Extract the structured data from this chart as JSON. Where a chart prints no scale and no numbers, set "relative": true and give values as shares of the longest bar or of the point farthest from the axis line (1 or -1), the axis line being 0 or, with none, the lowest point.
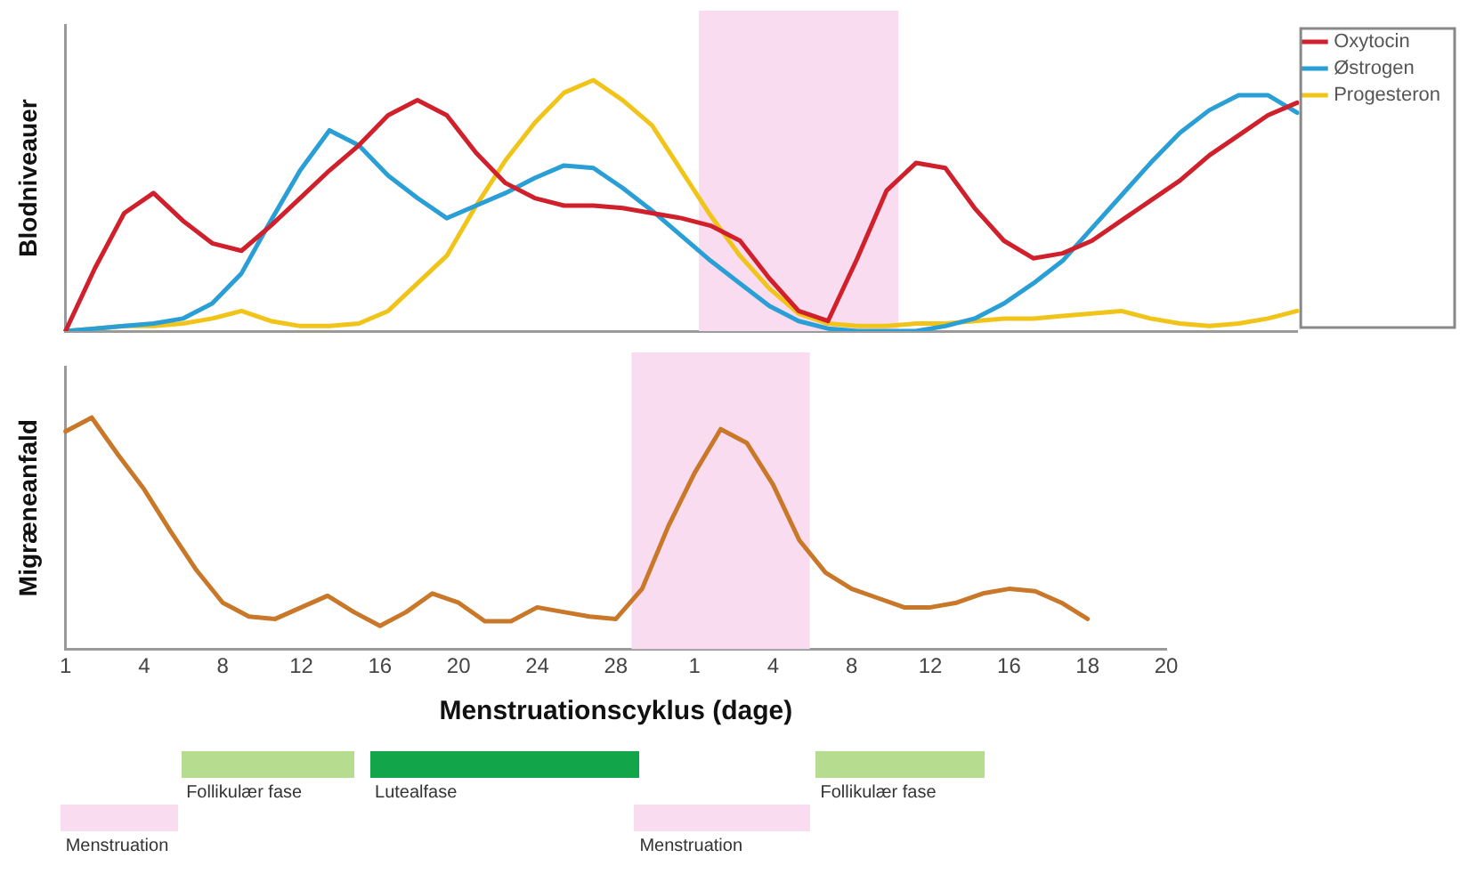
{
  "chart_data": [
    {
      "type": "line",
      "ylabel": "Blodniveauer",
      "relative": true,
      "legend": "top right",
      "grid": false,
      "tick_labels": false,
      "categories": [
        null,
        null,
        null,
        null,
        null,
        null,
        null,
        null,
        null,
        null,
        null,
        null,
        null,
        null,
        null,
        null,
        null,
        null,
        null,
        null,
        null,
        null,
        null,
        null,
        null,
        null,
        null,
        null,
        null,
        null,
        null,
        null,
        null,
        null,
        null,
        null,
        null,
        null,
        null,
        null,
        null,
        null,
        null
      ],
      "series": [
        {
          "name": "Oxytocin",
          "color": "#d0202c",
          "values": [
            0,
            0.25,
            0.47,
            0.55,
            0.44,
            0.35,
            0.32,
            0.42,
            0.53,
            0.64,
            0.74,
            0.86,
            0.92,
            0.86,
            0.71,
            0.59,
            0.53,
            0.5,
            0.5,
            0.49,
            0.47,
            0.45,
            0.42,
            0.36,
            0.21,
            0.08,
            0.04,
            0.29,
            0.56,
            0.67,
            0.65,
            0.49,
            0.36,
            0.29,
            0.31,
            0.36,
            0.44,
            0.52,
            0.6,
            0.7,
            0.78,
            0.86,
            0.91
          ]
        },
        {
          "name": "Østrogen",
          "color": "#2a9fd6",
          "values": [
            0,
            0.01,
            0.02,
            0.03,
            0.05,
            0.11,
            0.23,
            0.44,
            0.64,
            0.8,
            0.74,
            0.62,
            0.53,
            0.45,
            0.5,
            0.55,
            0.61,
            0.66,
            0.65,
            0.57,
            0.48,
            0.38,
            0.28,
            0.19,
            0.1,
            0.04,
            0.01,
            0,
            0,
            0,
            0.02,
            0.05,
            0.11,
            0.19,
            0.28,
            0.41,
            0.54,
            0.67,
            0.79,
            0.88,
            0.94,
            0.94,
            0.87
          ]
        },
        {
          "name": "Progesteron",
          "color": "#f0c419",
          "values": [
            0,
            0.01,
            0.02,
            0.02,
            0.03,
            0.05,
            0.08,
            0.04,
            0.02,
            0.02,
            0.03,
            0.08,
            0.19,
            0.3,
            0.5,
            0.68,
            0.83,
            0.95,
            1,
            0.92,
            0.82,
            0.64,
            0.46,
            0.3,
            0.17,
            0.07,
            0.03,
            0.02,
            0.02,
            0.03,
            0.03,
            0.04,
            0.05,
            0.05,
            0.06,
            0.07,
            0.08,
            0.05,
            0.03,
            0.02,
            0.03,
            0.05,
            0.08
          ]
        }
      ]
    },
    {
      "type": "line",
      "ylabel": "Migræneanfald",
      "xlabel": "Menstruationscyklus (dage)",
      "relative": true,
      "legend": false,
      "grid": false,
      "tick_labels": "x",
      "categories": [
        "1",
        null,
        null,
        "4",
        null,
        null,
        "8",
        null,
        null,
        "12",
        null,
        null,
        "16",
        null,
        null,
        "20",
        null,
        null,
        "24",
        null,
        null,
        "28",
        null,
        null,
        "1",
        null,
        null,
        "4",
        null,
        null,
        "8",
        null,
        null,
        "12",
        null,
        null,
        "16",
        null,
        null,
        "18",
        null,
        null,
        "20"
      ],
      "annotations": [
        "Menstruation",
        "Follikulær fase",
        "Lutealfase",
        "Menstruation",
        "Follikulær fase"
      ],
      "series": [
        {
          "color": "#c9782a",
          "values": [
            0.94,
            1,
            0.84,
            0.69,
            0.51,
            0.34,
            0.2,
            0.14,
            0.13,
            0.18,
            0.23,
            0.16,
            0.1,
            0.16,
            0.24,
            0.2,
            0.12,
            0.12,
            0.18,
            0.16,
            0.14,
            0.13,
            0.26,
            0.53,
            0.76,
            0.95,
            0.89,
            0.71,
            0.47,
            0.33,
            0.26,
            0.22,
            0.18,
            0.18,
            0.2,
            0.24,
            0.26,
            0.25,
            0.2,
            0.13,
            null,
            null,
            null
          ]
        }
      ]
    }
  ]
}
